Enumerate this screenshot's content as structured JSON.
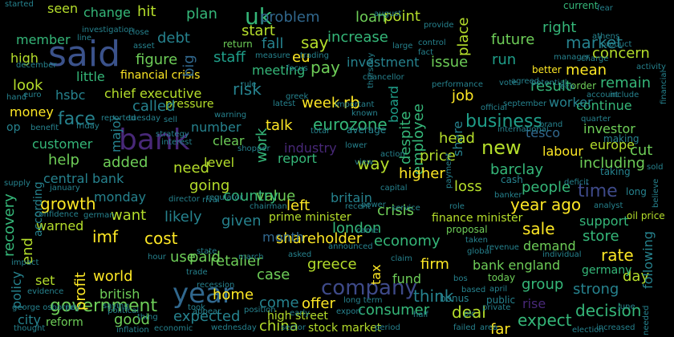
{
  "words": [
    {
      "text": "said",
      "color": "#3b528b"
    },
    {
      "text": "year",
      "color": "#31688e"
    },
    {
      "text": "bank",
      "color": "#482878"
    },
    {
      "text": "company",
      "color": "#3e4a89"
    },
    {
      "text": "uk",
      "color": "#35b779"
    },
    {
      "text": "government",
      "color": "#6ece58"
    },
    {
      "text": "market",
      "color": "#26828e"
    },
    {
      "text": "business",
      "color": "#1f9e89"
    },
    {
      "text": "new",
      "color": "#b5de2b"
    },
    {
      "text": "time",
      "color": "#3e4a89"
    },
    {
      "text": "problem",
      "color": "#31688e"
    },
    {
      "text": "increase",
      "color": "#35b779"
    },
    {
      "text": "point",
      "color": "#b5de2b"
    },
    {
      "text": "loan",
      "color": "#6ece58"
    },
    {
      "text": "future",
      "color": "#6ece58"
    },
    {
      "text": "right",
      "color": "#35b779"
    },
    {
      "text": "concern",
      "color": "#b5de2b"
    },
    {
      "text": "mean",
      "color": "#fde725"
    },
    {
      "text": "remain",
      "color": "#35b779"
    },
    {
      "text": "investment",
      "color": "#26828e"
    },
    {
      "text": "issue",
      "color": "#6ece58"
    },
    {
      "text": "place",
      "color": "#b5de2b"
    },
    {
      "text": "run",
      "color": "#1f9e89"
    },
    {
      "text": "chief executive",
      "color": "#b5de2b"
    },
    {
      "text": "financial crisis",
      "color": "#fde725"
    },
    {
      "text": "eurozone",
      "color": "#35b779"
    },
    {
      "text": "employee",
      "color": "#35b779"
    },
    {
      "text": "despite",
      "color": "#35b779"
    },
    {
      "text": "board",
      "color": "#1f9e89"
    },
    {
      "text": "share",
      "color": "#26828e"
    },
    {
      "text": "job",
      "color": "#fde725"
    },
    {
      "text": "result",
      "color": "#35b779"
    },
    {
      "text": "continue",
      "color": "#35b779"
    },
    {
      "text": "worker",
      "color": "#26828e"
    },
    {
      "text": "investor",
      "color": "#6ece58"
    },
    {
      "text": "europe",
      "color": "#b5de2b"
    },
    {
      "text": "tesco",
      "color": "#31688e"
    },
    {
      "text": "cut",
      "color": "#6ece58"
    },
    {
      "text": "including",
      "color": "#6ece58"
    },
    {
      "text": "head",
      "color": "#b5de2b"
    },
    {
      "text": "labour",
      "color": "#fde725"
    },
    {
      "text": "price",
      "color": "#b5de2b"
    },
    {
      "text": "barclay",
      "color": "#35b779"
    },
    {
      "text": "higher",
      "color": "#fde725"
    },
    {
      "text": "loss",
      "color": "#b5de2b"
    },
    {
      "text": "people",
      "color": "#35b779"
    },
    {
      "text": "year ago",
      "color": "#fde725"
    },
    {
      "text": "crisis",
      "color": "#6ece58"
    },
    {
      "text": "britain",
      "color": "#26828e"
    },
    {
      "text": "london",
      "color": "#35b779"
    },
    {
      "text": "economy",
      "color": "#35b779"
    },
    {
      "text": "finance minister",
      "color": "#b5de2b"
    },
    {
      "text": "sale",
      "color": "#fde725"
    },
    {
      "text": "support",
      "color": "#35b779"
    },
    {
      "text": "store",
      "color": "#35b779"
    },
    {
      "text": "demand",
      "color": "#6ece58"
    },
    {
      "text": "rate",
      "color": "#fde725"
    },
    {
      "text": "bank england",
      "color": "#6ece58"
    },
    {
      "text": "firm",
      "color": "#fde725"
    },
    {
      "text": "group",
      "color": "#35b779"
    },
    {
      "text": "day",
      "color": "#b5de2b"
    },
    {
      "text": "strong",
      "color": "#26828e"
    },
    {
      "text": "germany",
      "color": "#35b779"
    },
    {
      "text": "decision",
      "color": "#35b779"
    },
    {
      "text": "expect",
      "color": "#35b779"
    },
    {
      "text": "far",
      "color": "#fde725"
    },
    {
      "text": "deal",
      "color": "#b5de2b"
    },
    {
      "text": "rise",
      "color": "#482878"
    },
    {
      "text": "fund",
      "color": "#6ece58"
    },
    {
      "text": "think",
      "color": "#26828e"
    },
    {
      "text": "consumer",
      "color": "#35b779"
    },
    {
      "text": "tax",
      "color": "#fde725"
    },
    {
      "text": "greece",
      "color": "#b5de2b"
    },
    {
      "text": "shareholder",
      "color": "#fde725"
    },
    {
      "text": "month",
      "color": "#31688e"
    },
    {
      "text": "prime minister",
      "color": "#b5de2b"
    },
    {
      "text": "left",
      "color": "#fde725"
    },
    {
      "text": "value",
      "color": "#6ece58"
    },
    {
      "text": "country",
      "color": "#35b779"
    },
    {
      "text": "report",
      "color": "#35b779"
    },
    {
      "text": "way",
      "color": "#b5de2b"
    },
    {
      "text": "industry",
      "color": "#482878"
    },
    {
      "text": "work",
      "color": "#35b779"
    },
    {
      "text": "talk",
      "color": "#fde725"
    },
    {
      "text": "level",
      "color": "#b5de2b"
    },
    {
      "text": "going",
      "color": "#b5de2b"
    },
    {
      "text": "need",
      "color": "#b5de2b"
    },
    {
      "text": "clear",
      "color": "#6ece58"
    },
    {
      "text": "number",
      "color": "#26828e"
    },
    {
      "text": "pressure",
      "color": "#b5de2b"
    },
    {
      "text": "called",
      "color": "#26828e"
    },
    {
      "text": "risk",
      "color": "#26828e"
    },
    {
      "text": "week",
      "color": "#fde725"
    },
    {
      "text": "rb",
      "color": "#fde725"
    },
    {
      "text": "pay",
      "color": "#6ece58"
    },
    {
      "text": "meeting",
      "color": "#35b779"
    },
    {
      "text": "say",
      "color": "#b5de2b"
    },
    {
      "text": "fall",
      "color": "#26828e"
    },
    {
      "text": "eu",
      "color": "#fde725"
    },
    {
      "text": "start",
      "color": "#b5de2b"
    },
    {
      "text": "staff",
      "color": "#1f9e89"
    },
    {
      "text": "figure",
      "color": "#6ece58"
    },
    {
      "text": "debt",
      "color": "#26828e"
    },
    {
      "text": "plan",
      "color": "#35b779"
    },
    {
      "text": "hit",
      "color": "#b5de2b"
    },
    {
      "text": "change",
      "color": "#35b779"
    },
    {
      "text": "seen",
      "color": "#b5de2b"
    },
    {
      "text": "member",
      "color": "#35b779"
    },
    {
      "text": "high",
      "color": "#b5de2b"
    },
    {
      "text": "little",
      "color": "#35b779"
    },
    {
      "text": "big",
      "color": "#31688e"
    },
    {
      "text": "look",
      "color": "#b5de2b"
    },
    {
      "text": "hsbc",
      "color": "#26828e"
    },
    {
      "text": "money",
      "color": "#fde725"
    },
    {
      "text": "face",
      "color": "#26828e"
    },
    {
      "text": "end",
      "color": "#b5de2b"
    },
    {
      "text": "major",
      "color": "#26828e"
    },
    {
      "text": "customer",
      "color": "#35b779"
    },
    {
      "text": "help",
      "color": "#6ece58"
    },
    {
      "text": "added",
      "color": "#6ece58"
    },
    {
      "text": "central bank",
      "color": "#26828e"
    },
    {
      "text": "growth",
      "color": "#fde725"
    },
    {
      "text": "monday",
      "color": "#26828e"
    },
    {
      "text": "want",
      "color": "#b5de2b"
    },
    {
      "text": "likely",
      "color": "#26828e"
    },
    {
      "text": "given",
      "color": "#26828e"
    },
    {
      "text": "cost",
      "color": "#fde725"
    },
    {
      "text": "recovery",
      "color": "#35b779"
    },
    {
      "text": "warned",
      "color": "#b5de2b"
    },
    {
      "text": "imf",
      "color": "#fde725"
    },
    {
      "text": "use",
      "color": "#6ece58"
    },
    {
      "text": "paid",
      "color": "#6ece58"
    },
    {
      "text": "retailer",
      "color": "#6ece58"
    },
    {
      "text": "world",
      "color": "#fde725"
    },
    {
      "text": "british",
      "color": "#6ece58"
    },
    {
      "text": "profit",
      "color": "#fde725"
    },
    {
      "text": "policy",
      "color": "#26828e"
    },
    {
      "text": "set",
      "color": "#b5de2b"
    },
    {
      "text": "case",
      "color": "#6ece58"
    },
    {
      "text": "home",
      "color": "#fde725"
    },
    {
      "text": "expected",
      "color": "#26828e"
    },
    {
      "text": "come",
      "color": "#26828e"
    },
    {
      "text": "offer",
      "color": "#fde725"
    },
    {
      "text": "good",
      "color": "#6ece58"
    },
    {
      "text": "city",
      "color": "#26828e"
    },
    {
      "text": "china",
      "color": "#b5de2b"
    },
    {
      "text": "following",
      "color": "#26828e"
    },
    {
      "text": "high street",
      "color": "#b5de2b"
    },
    {
      "text": "stock market",
      "color": "#b5de2b"
    },
    {
      "text": "reform",
      "color": "#6ece58"
    },
    {
      "text": "according",
      "color": "#26828e"
    },
    {
      "text": "oil price",
      "color": "#b5de2b"
    },
    {
      "text": "making",
      "color": "#26828e"
    },
    {
      "text": "taking",
      "color": "#26828e"
    },
    {
      "text": "long",
      "color": "#26828e"
    },
    {
      "text": "current",
      "color": "#35b779"
    },
    {
      "text": "better",
      "color": "#fde725"
    },
    {
      "text": "order",
      "color": "#6ece58"
    },
    {
      "text": "account",
      "color": "#26828e"
    },
    {
      "text": "include",
      "color": "#26828e"
    },
    {
      "text": "return",
      "color": "#6ece58"
    },
    {
      "text": "measure",
      "color": "#26828e"
    },
    {
      "text": "investigation",
      "color": "#26828e"
    },
    {
      "text": "line",
      "color": "#26828e"
    },
    {
      "text": "close",
      "color": "#26828e"
    },
    {
      "text": "asset",
      "color": "#26828e"
    },
    {
      "text": "rule",
      "color": "#26828e"
    },
    {
      "text": "latest",
      "color": "#26828e"
    },
    {
      "text": "regulator",
      "color": "#26828e"
    },
    {
      "text": "director",
      "color": "#26828e"
    },
    {
      "text": "rival",
      "color": "#26828e"
    },
    {
      "text": "chairman",
      "color": "#26828e"
    },
    {
      "text": "power",
      "color": "#26828e"
    },
    {
      "text": "service",
      "color": "#26828e"
    },
    {
      "text": "proposal",
      "color": "#6ece58"
    },
    {
      "text": "global",
      "color": "#26828e"
    },
    {
      "text": "today",
      "color": "#6ece58"
    },
    {
      "text": "bonus",
      "color": "#26828e"
    },
    {
      "text": "public",
      "color": "#26828e"
    },
    {
      "text": "failed",
      "color": "#26828e"
    },
    {
      "text": "area",
      "color": "#26828e"
    },
    {
      "text": "long term",
      "color": "#26828e"
    },
    {
      "text": "sector",
      "color": "#26828e"
    },
    {
      "text": "early",
      "color": "#26828e"
    },
    {
      "text": "position",
      "color": "#26828e"
    },
    {
      "text": "took",
      "color": "#26828e"
    },
    {
      "text": "wednesday",
      "color": "#26828e"
    },
    {
      "text": "saying",
      "color": "#26828e"
    },
    {
      "text": "impact",
      "color": "#26828e"
    },
    {
      "text": "evidence",
      "color": "#26828e"
    },
    {
      "text": "july",
      "color": "#26828e"
    },
    {
      "text": "thought",
      "color": "#26828e"
    },
    {
      "text": "friday",
      "color": "#26828e"
    },
    {
      "text": "benefit",
      "color": "#26828e"
    },
    {
      "text": "euro",
      "color": "#26828e"
    },
    {
      "text": "hand",
      "color": "#26828e"
    },
    {
      "text": "op",
      "color": "#26828e"
    },
    {
      "text": "december",
      "color": "#26828e"
    },
    {
      "text": "january",
      "color": "#26828e"
    },
    {
      "text": "reported",
      "color": "#26828e"
    },
    {
      "text": "tuesday",
      "color": "#26828e"
    },
    {
      "text": "sell",
      "color": "#26828e"
    },
    {
      "text": "strategy",
      "color": "#26828e"
    },
    {
      "text": "total",
      "color": "#26828e"
    },
    {
      "text": "average",
      "color": "#26828e"
    },
    {
      "text": "recent",
      "color": "#26828e"
    },
    {
      "text": "came",
      "color": "#26828e"
    },
    {
      "text": "action",
      "color": "#26828e"
    },
    {
      "text": "cash",
      "color": "#26828e"
    },
    {
      "text": "fear",
      "color": "#26828e"
    },
    {
      "text": "athens",
      "color": "#26828e"
    },
    {
      "text": "product",
      "color": "#26828e"
    },
    {
      "text": "ecb",
      "color": "#26828e"
    },
    {
      "text": "potential",
      "color": "#26828e"
    },
    {
      "text": "vote",
      "color": "#26828e"
    },
    {
      "text": "quarter",
      "color": "#26828e"
    },
    {
      "text": "international",
      "color": "#26828e"
    },
    {
      "text": "greek",
      "color": "#26828e"
    },
    {
      "text": "announced",
      "color": "#26828e"
    },
    {
      "text": "lower",
      "color": "#26828e"
    },
    {
      "text": "asked",
      "color": "#26828e"
    },
    {
      "text": "march",
      "color": "#26828e"
    },
    {
      "text": "april",
      "color": "#26828e"
    },
    {
      "text": "june",
      "color": "#26828e"
    },
    {
      "text": "election",
      "color": "#26828e"
    },
    {
      "text": "increased",
      "color": "#26828e"
    },
    {
      "text": "needed",
      "color": "#26828e"
    },
    {
      "text": "analyst",
      "color": "#26828e"
    },
    {
      "text": "role",
      "color": "#26828e"
    },
    {
      "text": "claim",
      "color": "#26828e"
    },
    {
      "text": "period",
      "color": "#26828e"
    },
    {
      "text": "inflation",
      "color": "#26828e"
    },
    {
      "text": "george osborne",
      "color": "#26828e"
    },
    {
      "text": "recession",
      "color": "#26828e"
    },
    {
      "text": "economic",
      "color": "#26828e"
    },
    {
      "text": "half",
      "color": "#26828e"
    },
    {
      "text": "export",
      "color": "#26828e"
    },
    {
      "text": "control",
      "color": "#26828e"
    },
    {
      "text": "large",
      "color": "#26828e"
    },
    {
      "text": "performance",
      "color": "#26828e"
    },
    {
      "text": "provide",
      "color": "#26828e"
    },
    {
      "text": "september",
      "color": "#26828e"
    },
    {
      "text": "official",
      "color": "#26828e"
    },
    {
      "text": "important",
      "color": "#26828e"
    },
    {
      "text": "known",
      "color": "#26828e"
    },
    {
      "text": "trading",
      "color": "#26828e"
    },
    {
      "text": "focus",
      "color": "#26828e"
    },
    {
      "text": "thursday",
      "color": "#26828e"
    },
    {
      "text": "based",
      "color": "#26828e"
    },
    {
      "text": "plc",
      "color": "#26828e"
    },
    {
      "text": "private",
      "color": "#26828e"
    },
    {
      "text": "supply",
      "color": "#26828e"
    },
    {
      "text": "confidence",
      "color": "#26828e"
    },
    {
      "text": "german",
      "color": "#26828e"
    },
    {
      "text": "hour",
      "color": "#26828e"
    },
    {
      "text": "trade",
      "color": "#26828e"
    },
    {
      "text": "state",
      "color": "#26828e"
    },
    {
      "text": "political",
      "color": "#26828e"
    },
    {
      "text": "appear",
      "color": "#26828e"
    },
    {
      "text": "thing",
      "color": "#26828e"
    },
    {
      "text": "bos",
      "color": "#26828e"
    },
    {
      "text": "revenue",
      "color": "#26828e"
    },
    {
      "text": "individual",
      "color": "#26828e"
    },
    {
      "text": "financial",
      "color": "#26828e"
    },
    {
      "text": "sold",
      "color": "#26828e"
    },
    {
      "text": "believe",
      "color": "#26828e"
    },
    {
      "text": "activity",
      "color": "#26828e"
    },
    {
      "text": "provide",
      "color": "#26828e"
    },
    {
      "text": "taken",
      "color": "#26828e"
    },
    {
      "text": "payment",
      "color": "#26828e"
    },
    {
      "text": "capital",
      "color": "#26828e"
    },
    {
      "text": "view",
      "color": "#26828e"
    },
    {
      "text": "shopper",
      "color": "#26828e"
    },
    {
      "text": "warning",
      "color": "#26828e"
    },
    {
      "text": "interest",
      "color": "#26828e"
    },
    {
      "text": "banker",
      "color": "#26828e"
    },
    {
      "text": "deficit",
      "color": "#26828e"
    },
    {
      "text": "charge",
      "color": "#26828e"
    },
    {
      "text": "chancellor",
      "color": "#26828e"
    },
    {
      "text": "august",
      "color": "#26828e"
    },
    {
      "text": "fact",
      "color": "#26828e"
    },
    {
      "text": "manager",
      "color": "#26828e"
    },
    {
      "text": "brand",
      "color": "#26828e"
    },
    {
      "text": "agreed",
      "color": "#26828e"
    },
    {
      "text": "started",
      "color": "#26828e"
    }
  ]
}
